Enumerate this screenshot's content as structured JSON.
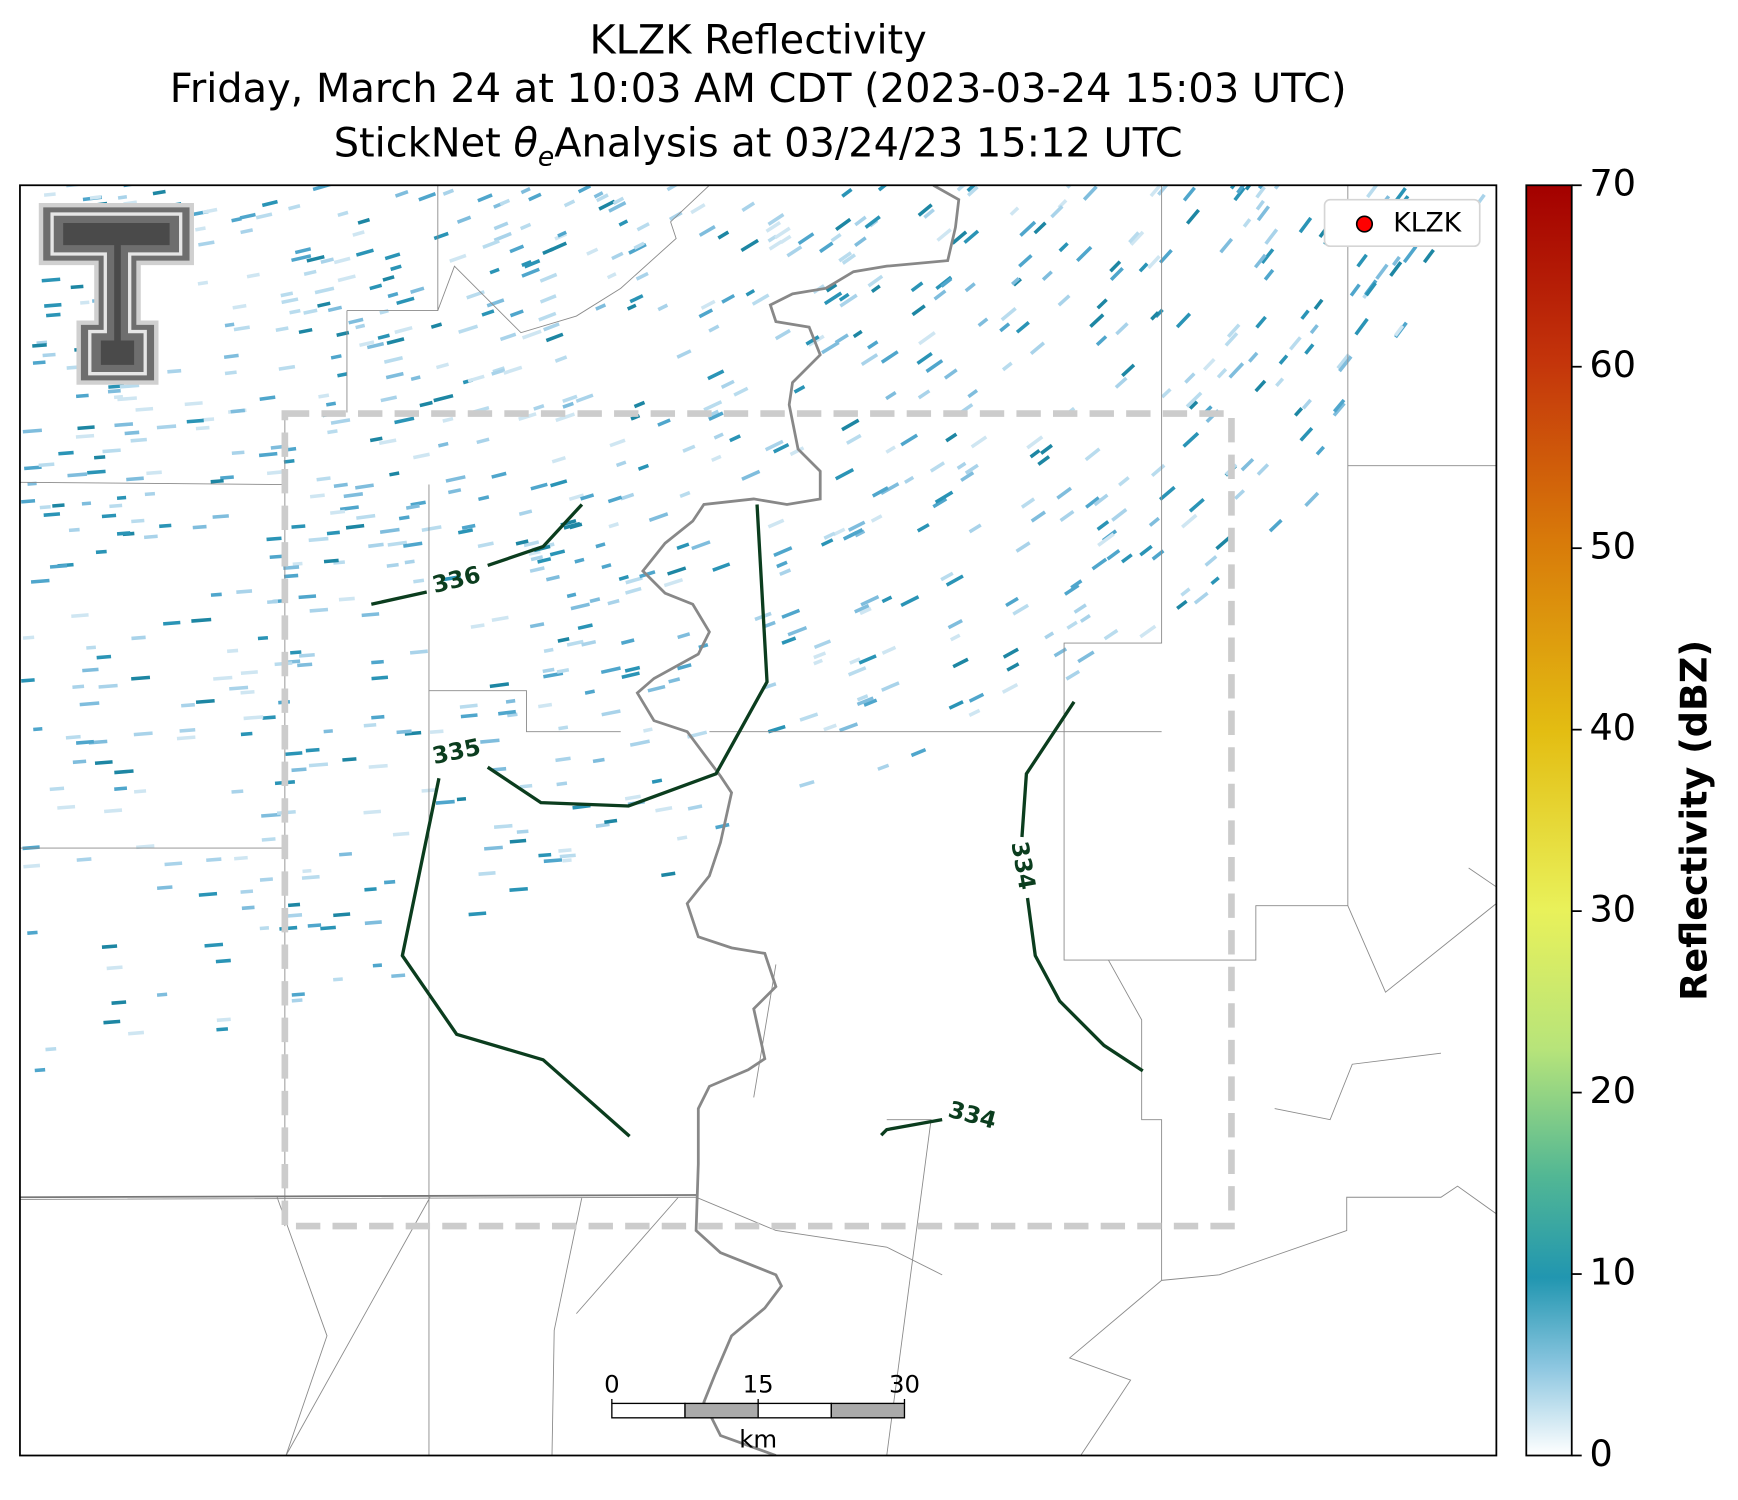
{
  "header": {
    "title": "KLZK Reflectivity",
    "subtitle": "Friday, March 24 at 10:03 AM CDT (2023-03-24 15:03 UTC)",
    "analysis_prefix": "StickNet",
    "theta": "θ",
    "theta_subscript": "e",
    "analysis_suffix": "Analysis at 03/24/23 15:12 UTC"
  },
  "legend": {
    "label": "KLZK",
    "color": "#ff0000"
  },
  "contours": [
    {
      "level": 336
    },
    {
      "level": 335
    },
    {
      "level": 334
    },
    {
      "level": 334
    }
  ],
  "scale_bar": {
    "ticks": [
      0,
      15,
      30
    ],
    "unit": "km"
  },
  "colorbar": {
    "label": "Reflectivity (dBZ)",
    "lim": [
      0,
      70
    ],
    "ticks": [
      0,
      10,
      20,
      30,
      40,
      50,
      60,
      70
    ]
  }
}
